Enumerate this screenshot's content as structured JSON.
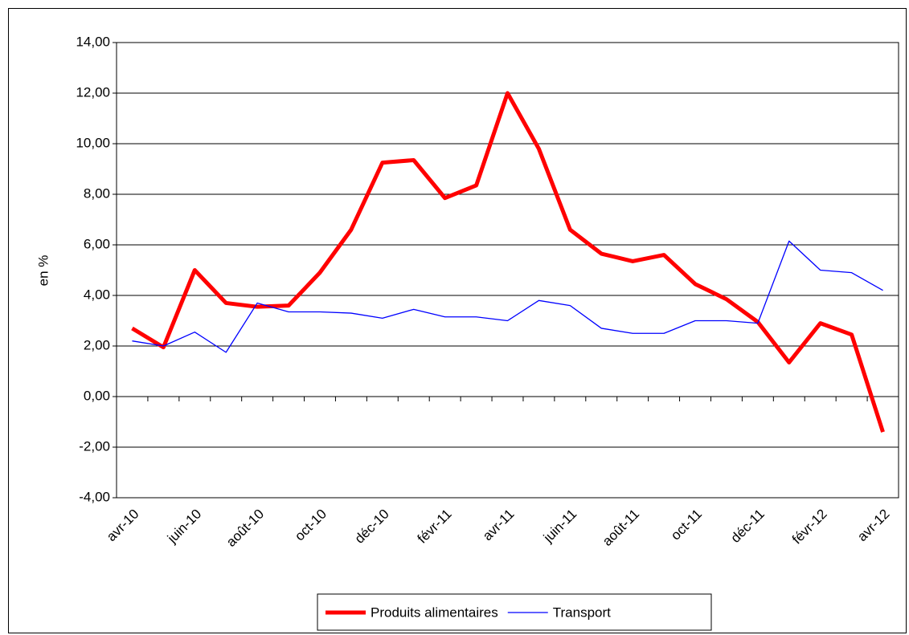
{
  "chart_data": {
    "type": "line",
    "y_label": "en %",
    "categories": [
      "avr-10",
      null,
      "juin-10",
      null,
      "août-10",
      null,
      "oct-10",
      null,
      "déc-10",
      null,
      "févr-11",
      null,
      "avr-11",
      null,
      "juin-11",
      null,
      "août-11",
      null,
      "oct-11",
      null,
      "déc-11",
      null,
      "févr-12",
      null,
      "avr-12"
    ],
    "series": [
      {
        "name": "Produits alimentaires",
        "color": "#ff0000",
        "values": [
          2.7,
          1.95,
          5.0,
          3.7,
          3.55,
          3.6,
          4.9,
          6.6,
          9.25,
          9.35,
          7.85,
          8.35,
          12.0,
          9.8,
          6.6,
          5.65,
          5.35,
          5.6,
          4.45,
          3.85,
          2.95,
          1.35,
          2.9,
          2.45,
          -1.4
        ]
      },
      {
        "name": "Transport",
        "color": "#0000ff",
        "values": [
          2.2,
          2.0,
          2.55,
          1.75,
          3.7,
          3.35,
          3.35,
          3.3,
          3.1,
          3.45,
          3.15,
          3.15,
          3.0,
          3.8,
          3.6,
          2.7,
          2.5,
          2.5,
          3.0,
          3.0,
          2.9,
          6.15,
          5.0,
          4.9,
          4.2
        ]
      }
    ],
    "ylim": [
      -4,
      14
    ],
    "yticks": [
      {
        "value": -4,
        "label": "-4,00"
      },
      {
        "value": -2,
        "label": "-2,00"
      },
      {
        "value": 0,
        "label": "0,00"
      },
      {
        "value": 2,
        "label": "2,00"
      },
      {
        "value": 4,
        "label": "4,00"
      },
      {
        "value": 6,
        "label": "6,00"
      },
      {
        "value": 8,
        "label": "8,00"
      },
      {
        "value": 10,
        "label": "10,00"
      },
      {
        "value": 12,
        "label": "12,00"
      },
      {
        "value": 14,
        "label": "14,00"
      }
    ],
    "grid": true,
    "legend": "bottom"
  }
}
